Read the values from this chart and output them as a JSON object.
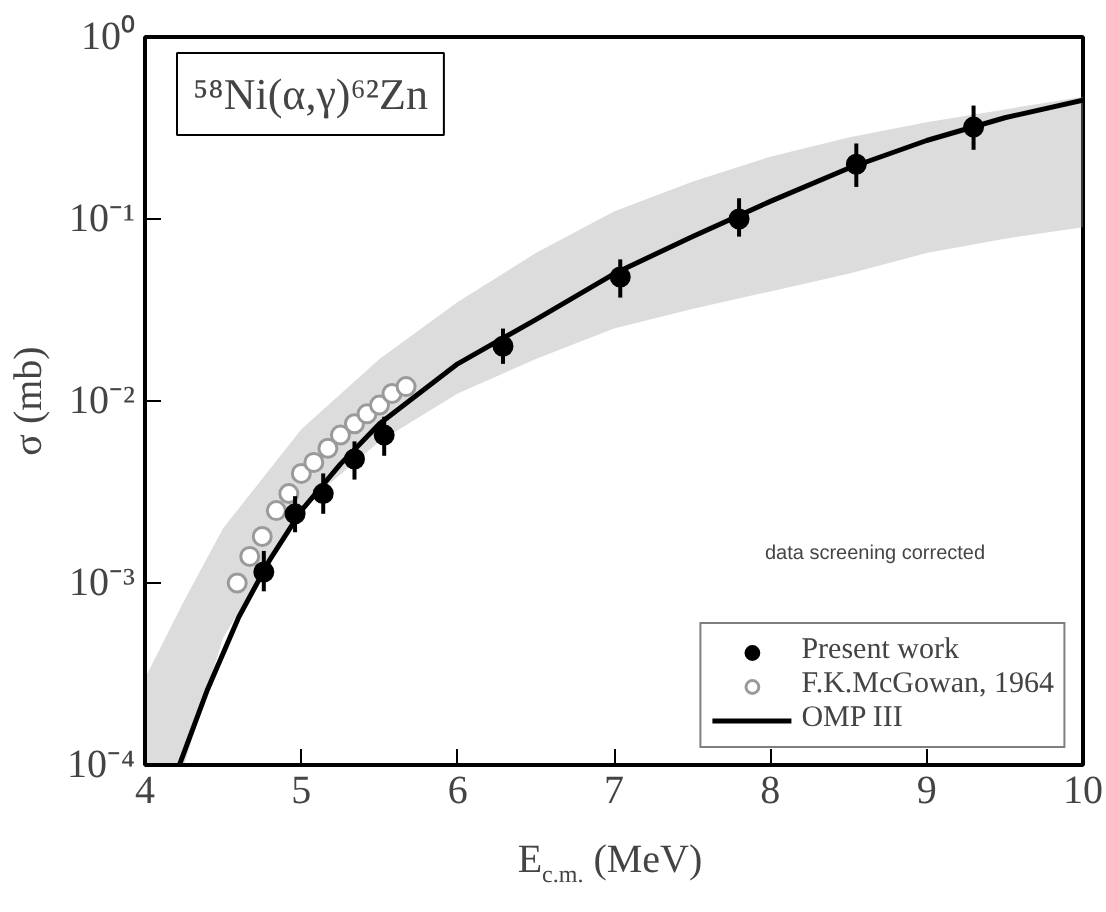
{
  "chart_data": {
    "type": "scatter",
    "xlabel": "E$_{c.m.}$ (MeV)",
    "ylabel": "σ (mb)",
    "log": "y",
    "grid": false,
    "legend": "bottom right",
    "xlim": [
      4,
      10
    ],
    "xticks": [
      4,
      5,
      6,
      7,
      8,
      9,
      10
    ],
    "ylim": [
      0.0001,
      1
    ],
    "yticks": [
      {
        "value": 0.0001,
        "label": "10⁻⁴"
      },
      {
        "value": 0.001,
        "label": "10⁻³"
      },
      {
        "value": 0.01,
        "label": "10⁻²"
      },
      {
        "value": 0.1,
        "label": "10⁻¹"
      },
      {
        "value": 1,
        "label": "10⁰"
      }
    ],
    "annotations": [
      "⁵⁸Ni(α,γ)⁶²Zn",
      "data screening corrected"
    ],
    "series": [
      {
        "type": "line",
        "color": "#9a9a9a",
        "x": [
          4.0,
          4.25,
          4.5,
          5.0,
          5.5,
          6.0,
          6.5,
          7.0,
          7.5,
          8.0,
          8.5,
          9.0,
          9.5,
          10.0
        ],
        "values": [
          null,
          null,
          null,
          null,
          null,
          null,
          null,
          null,
          null,
          null,
          null,
          null,
          null,
          null
        ],
        "upper": [
          0.0003,
          0.0008,
          0.002,
          0.007,
          0.017,
          0.035,
          0.065,
          0.11,
          0.16,
          0.22,
          0.28,
          0.34,
          0.4,
          0.47
        ],
        "lower": [
          0.0001,
          0.0001,
          0.0005,
          0.0026,
          0.006,
          0.011,
          0.017,
          0.025,
          0.032,
          0.04,
          0.05,
          0.065,
          0.078,
          0.09
        ]
      },
      {
        "type": "line",
        "name": "OMP III",
        "color": "#000000",
        "x": [
          4.22,
          4.4,
          4.6,
          4.8,
          5.0,
          5.25,
          5.5,
          6.0,
          6.5,
          7.0,
          7.5,
          8.0,
          8.5,
          9.0,
          9.5,
          10.0
        ],
        "values": [
          0.0001,
          0.00026,
          0.00065,
          0.00135,
          0.0025,
          0.0045,
          0.0075,
          0.016,
          0.028,
          0.05,
          0.08,
          0.125,
          0.19,
          0.27,
          0.36,
          0.45
        ]
      },
      {
        "name": "F.K.McGowan, 1964",
        "color": "#9a9a9a",
        "marker": "circle",
        "x": [
          4.59,
          4.67,
          4.75,
          4.84,
          4.92,
          5.0,
          5.08,
          5.17,
          5.25,
          5.34,
          5.42,
          5.5,
          5.58,
          5.67
        ],
        "values": [
          0.001,
          0.0014,
          0.0018,
          0.0025,
          0.0031,
          0.004,
          0.0046,
          0.0055,
          0.0065,
          0.0075,
          0.0085,
          0.0095,
          0.011,
          0.012
        ]
      },
      {
        "name": "Present work",
        "color": "#000000",
        "marker": "circle",
        "x": [
          4.76,
          4.96,
          5.14,
          5.34,
          5.53,
          6.29,
          7.04,
          7.8,
          8.55,
          9.3
        ],
        "values": [
          0.00115,
          0.0024,
          0.0031,
          0.0048,
          0.0065,
          0.02,
          0.048,
          0.1,
          0.2,
          0.32
        ],
        "errors": [
          [
            0.0009,
            0.0015
          ],
          [
            0.0019,
            0.003
          ],
          [
            0.0024,
            0.004
          ],
          [
            0.0037,
            0.006
          ],
          [
            0.005,
            0.0082
          ],
          [
            0.016,
            0.025
          ],
          [
            0.037,
            0.06
          ],
          [
            0.08,
            0.13
          ],
          [
            0.15,
            0.26
          ],
          [
            0.24,
            0.42
          ]
        ]
      }
    ]
  }
}
